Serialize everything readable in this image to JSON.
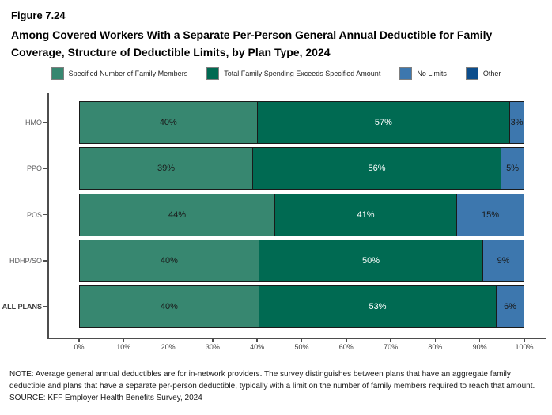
{
  "figure_label": "Figure 7.24",
  "title": "Among Covered Workers With a Separate Per-Person General Annual Deductible for Family Coverage, Structure of Deductible Limits, by Plan Type, 2024",
  "legend": {
    "items": [
      {
        "label": "Specified Number of Family Members",
        "color": "#378770"
      },
      {
        "label": "Total Family Spending Exceeds Specified Amount",
        "color": "#006A52"
      },
      {
        "label": "No Limits",
        "color": "#3D77AE"
      },
      {
        "label": "Other",
        "color": "#0C4D8C"
      }
    ]
  },
  "chart_data": {
    "type": "bar",
    "orientation": "horizontal",
    "stacked": true,
    "title": "Among Covered Workers With a Separate Per-Person General Annual Deductible for Family Coverage, Structure of Deductible Limits, by Plan Type, 2024",
    "categories": [
      "HMO",
      "PPO",
      "POS",
      "HDHP/SO",
      "ALL PLANS"
    ],
    "series": [
      {
        "name": "Specified Number of Family Members",
        "color": "#378770",
        "label_color": "#1a1a1a",
        "values": [
          40,
          39,
          44,
          40,
          40
        ]
      },
      {
        "name": "Total Family Spending Exceeds Specified Amount",
        "color": "#006A52",
        "label_color": "#ffffff",
        "values": [
          57,
          56,
          41,
          50,
          53
        ]
      },
      {
        "name": "No Limits",
        "color": "#3D77AE",
        "label_color": "#1a1a1a",
        "values": [
          3,
          5,
          15,
          9,
          6
        ]
      },
      {
        "name": "Other",
        "color": "#0C4D8C",
        "label_color": "#ffffff",
        "values": [
          0,
          0,
          0,
          0,
          0
        ]
      }
    ],
    "value_suffix": "%",
    "xlabel": "",
    "ylabel": "",
    "xlim": [
      0,
      100
    ],
    "x_ticks": [
      "0%",
      "10%",
      "20%",
      "30%",
      "40%",
      "50%",
      "60%",
      "70%",
      "80%",
      "90%",
      "100%"
    ],
    "grid": false,
    "legend_position": "top"
  },
  "notes": {
    "note": "NOTE: Average general annual deductibles are for in-network providers. The survey distinguishes between plans that have an aggregate family deductible and plans that have a separate per-person deductible, typically with a limit on the number of family members required to reach that amount.",
    "source": "SOURCE: KFF Employer Health Benefits Survey, 2024"
  }
}
